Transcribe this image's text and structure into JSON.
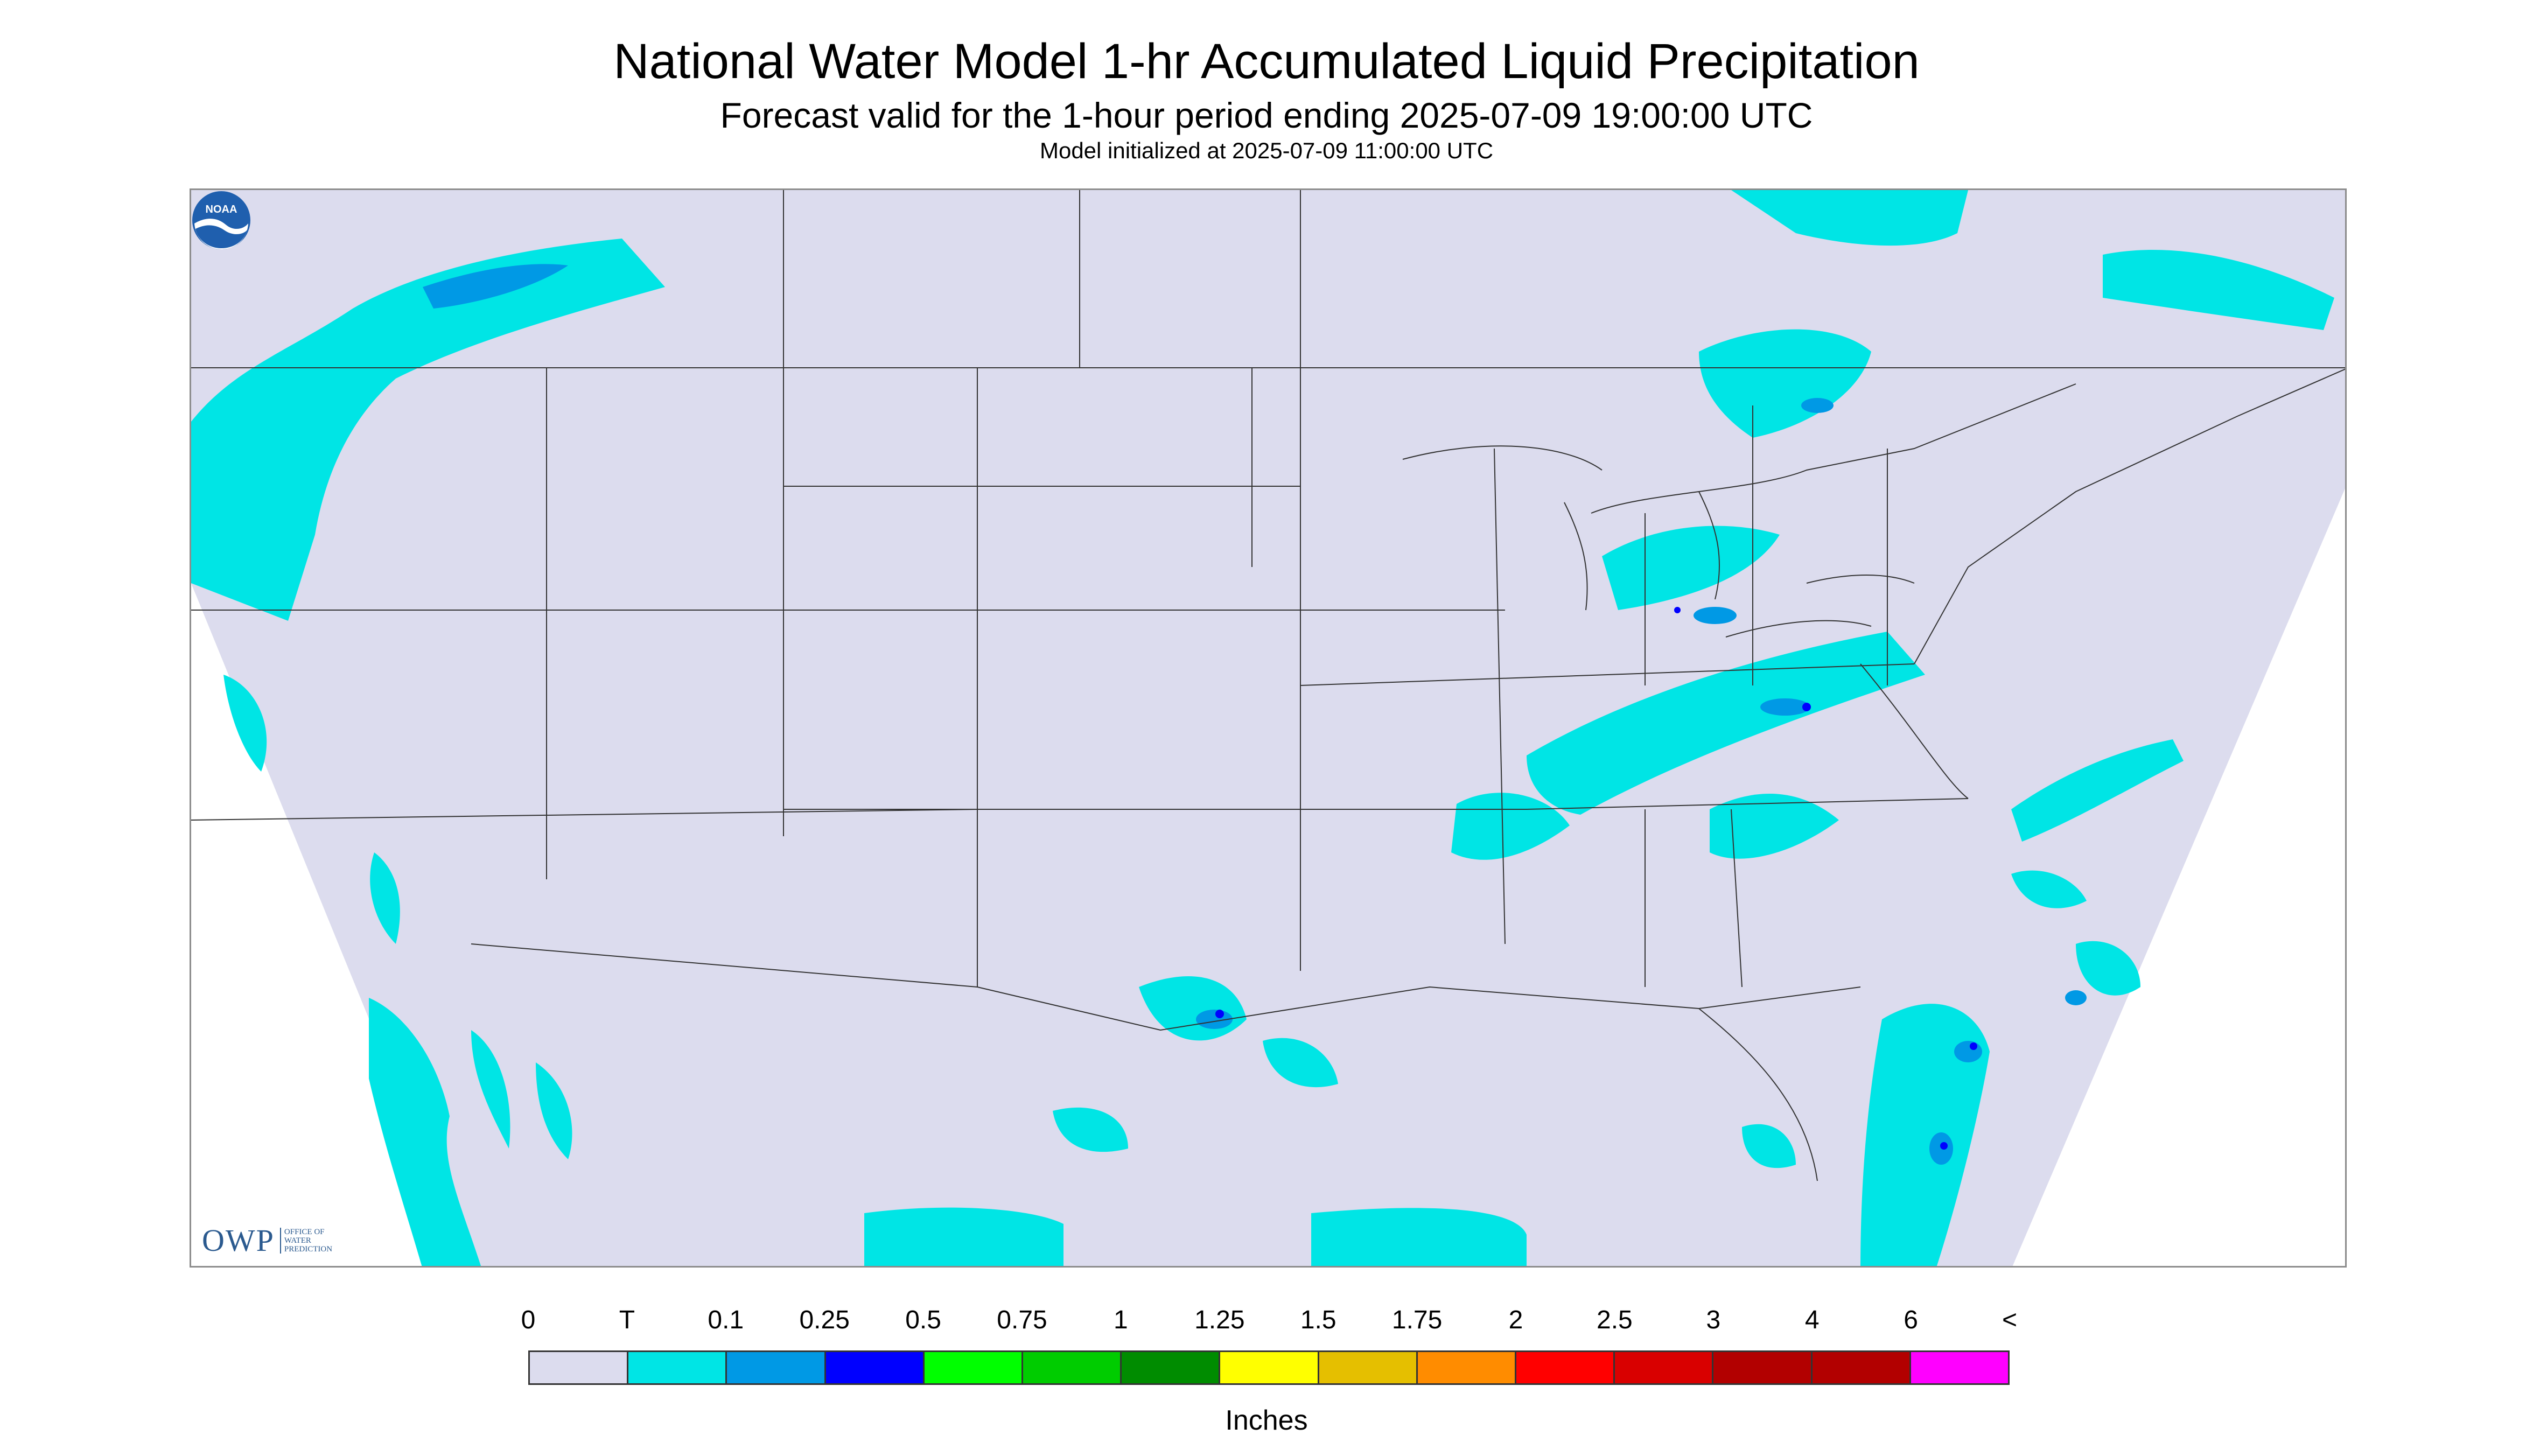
{
  "title": "National Water Model 1-hr Accumulated Liquid Precipitation",
  "subtitle": "Forecast valid for the 1-hour period ending 2025-07-09 19:00:00 UTC",
  "init_text": "Model initialized at 2025-07-09 11:00:00 UTC",
  "logo_left": {
    "letters": "OWP",
    "line1": "Office of",
    "line2": "Water",
    "line3": "Prediction"
  },
  "logo_right": {
    "text": "NOAA"
  },
  "legend": {
    "labels": [
      "0",
      "T",
      "0.1",
      "0.25",
      "0.5",
      "0.75",
      "1",
      "1.25",
      "1.5",
      "1.75",
      "2",
      "2.5",
      "3",
      "4",
      "6",
      "<"
    ],
    "colors": [
      "#dcdcee",
      "#00e5e5",
      "#0099e5",
      "#0000ff",
      "#00ff00",
      "#00cc00",
      "#008c00",
      "#ffff00",
      "#e5bf00",
      "#ff8c00",
      "#ff0000",
      "#d90000",
      "#b20000",
      "#b20000",
      "#ff00ff",
      "#9955cc"
    ],
    "units": "Inches"
  },
  "colors": {
    "background_region": "#dcdcee",
    "trace": "#00e5e5",
    "light": "#0099e5",
    "heavy": "#0000ff",
    "borders": "#333333"
  }
}
